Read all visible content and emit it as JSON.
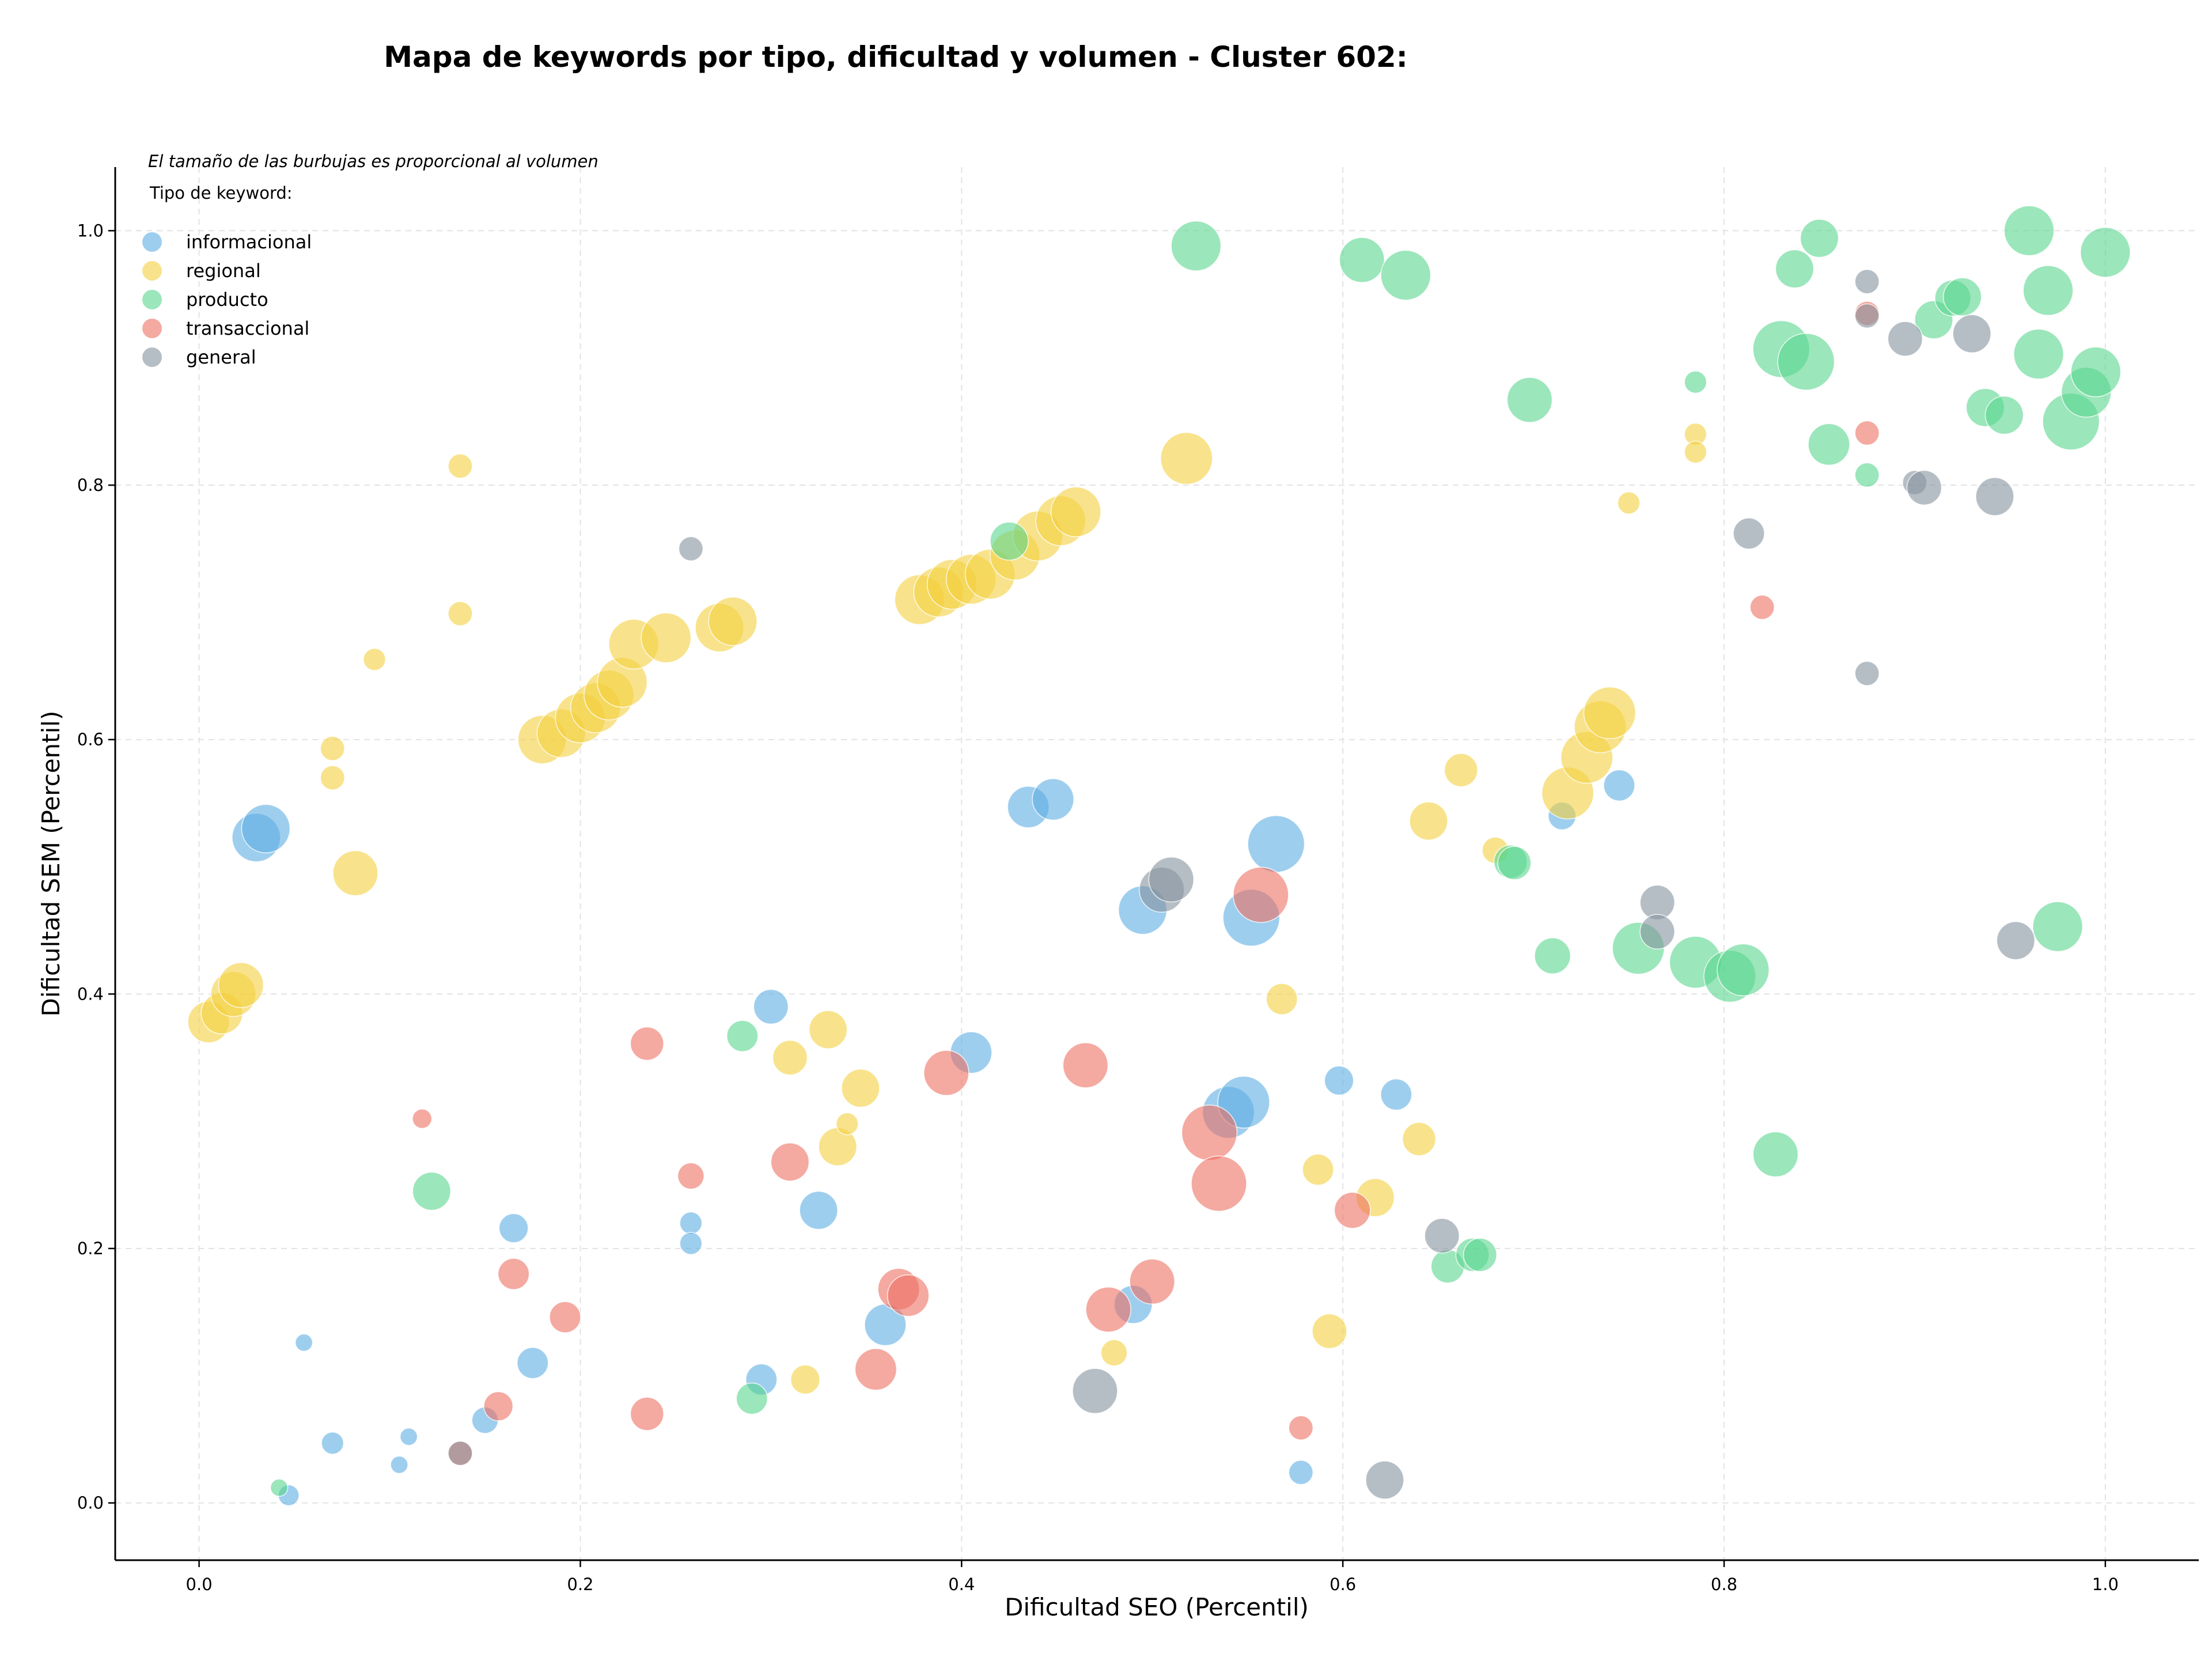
{
  "chart_data": {
    "type": "scatter",
    "title": "Mapa de keywords por tipo, dificultad y volumen - Cluster 602:",
    "subtitle_note": "El tamaño de las burbujas es proporcional al volumen",
    "xlabel": "Dificultad SEO (Percentil)",
    "ylabel": "Dificultad SEM (Percentil)",
    "xlim": [
      -0.044,
      1.049
    ],
    "ylim": [
      -0.045,
      1.05
    ],
    "xticks": [
      0.0,
      0.2,
      0.4,
      0.6,
      0.8,
      1.0
    ],
    "yticks": [
      0.0,
      0.2,
      0.4,
      0.6,
      0.8,
      1.0
    ],
    "xtick_labels": [
      "0.0",
      "0.2",
      "0.4",
      "0.6",
      "0.8",
      "1.0"
    ],
    "ytick_labels": [
      "0.0",
      "0.2",
      "0.4",
      "0.6",
      "0.8",
      "1.0"
    ],
    "grid": true,
    "legend": {
      "title": "Tipo de keyword:",
      "position": "top-left"
    },
    "series": [
      {
        "name": "informacional",
        "color": "#5dade2",
        "points": [
          [
            0.03,
            0.523,
            0.7
          ],
          [
            0.035,
            0.53,
            0.7
          ],
          [
            0.047,
            0.006,
            0.3
          ],
          [
            0.055,
            0.126,
            0.25
          ],
          [
            0.07,
            0.047,
            0.32
          ],
          [
            0.105,
            0.03,
            0.25
          ],
          [
            0.11,
            0.052,
            0.25
          ],
          [
            0.15,
            0.065,
            0.38
          ],
          [
            0.165,
            0.216,
            0.42
          ],
          [
            0.175,
            0.11,
            0.45
          ],
          [
            0.258,
            0.22,
            0.32
          ],
          [
            0.258,
            0.204,
            0.32
          ],
          [
            0.295,
            0.097,
            0.45
          ],
          [
            0.3,
            0.39,
            0.5
          ],
          [
            0.325,
            0.23,
            0.55
          ],
          [
            0.36,
            0.14,
            0.6
          ],
          [
            0.405,
            0.354,
            0.6
          ],
          [
            0.435,
            0.547,
            0.6
          ],
          [
            0.448,
            0.553,
            0.6
          ],
          [
            0.49,
            0.156,
            0.55
          ],
          [
            0.495,
            0.466,
            0.7
          ],
          [
            0.54,
            0.307,
            0.75
          ],
          [
            0.548,
            0.315,
            0.75
          ],
          [
            0.552,
            0.46,
            0.82
          ],
          [
            0.565,
            0.518,
            0.82
          ],
          [
            0.578,
            0.024,
            0.35
          ],
          [
            0.598,
            0.332,
            0.42
          ],
          [
            0.628,
            0.321,
            0.45
          ],
          [
            0.715,
            0.54,
            0.4
          ],
          [
            0.745,
            0.564,
            0.45
          ]
        ]
      },
      {
        "name": "regional",
        "color": "#f4d03f",
        "points": [
          [
            0.005,
            0.378,
            0.6
          ],
          [
            0.012,
            0.385,
            0.6
          ],
          [
            0.018,
            0.4,
            0.65
          ],
          [
            0.022,
            0.407,
            0.65
          ],
          [
            0.07,
            0.593,
            0.35
          ],
          [
            0.07,
            0.57,
            0.35
          ],
          [
            0.082,
            0.495,
            0.65
          ],
          [
            0.092,
            0.663,
            0.32
          ],
          [
            0.137,
            0.815,
            0.35
          ],
          [
            0.137,
            0.699,
            0.35
          ],
          [
            0.18,
            0.6,
            0.7
          ],
          [
            0.19,
            0.605,
            0.7
          ],
          [
            0.2,
            0.617,
            0.72
          ],
          [
            0.208,
            0.625,
            0.72
          ],
          [
            0.215,
            0.635,
            0.72
          ],
          [
            0.222,
            0.645,
            0.72
          ],
          [
            0.228,
            0.675,
            0.72
          ],
          [
            0.245,
            0.68,
            0.72
          ],
          [
            0.273,
            0.688,
            0.7
          ],
          [
            0.28,
            0.693,
            0.7
          ],
          [
            0.31,
            0.35,
            0.5
          ],
          [
            0.33,
            0.372,
            0.55
          ],
          [
            0.335,
            0.28,
            0.55
          ],
          [
            0.34,
            0.298,
            0.32
          ],
          [
            0.347,
            0.326,
            0.55
          ],
          [
            0.318,
            0.097,
            0.42
          ],
          [
            0.378,
            0.71,
            0.72
          ],
          [
            0.388,
            0.716,
            0.72
          ],
          [
            0.395,
            0.722,
            0.72
          ],
          [
            0.405,
            0.726,
            0.72
          ],
          [
            0.415,
            0.73,
            0.72
          ],
          [
            0.428,
            0.745,
            0.72
          ],
          [
            0.44,
            0.76,
            0.72
          ],
          [
            0.452,
            0.772,
            0.72
          ],
          [
            0.46,
            0.779,
            0.72
          ],
          [
            0.48,
            0.118,
            0.38
          ],
          [
            0.518,
            0.821,
            0.75
          ],
          [
            0.568,
            0.396,
            0.45
          ],
          [
            0.587,
            0.262,
            0.45
          ],
          [
            0.593,
            0.135,
            0.5
          ],
          [
            0.617,
            0.24,
            0.55
          ],
          [
            0.64,
            0.286,
            0.48
          ],
          [
            0.645,
            0.536,
            0.55
          ],
          [
            0.662,
            0.576,
            0.48
          ],
          [
            0.68,
            0.513,
            0.38
          ],
          [
            0.718,
            0.558,
            0.75
          ],
          [
            0.728,
            0.586,
            0.75
          ],
          [
            0.735,
            0.61,
            0.75
          ],
          [
            0.74,
            0.621,
            0.75
          ],
          [
            0.75,
            0.786,
            0.32
          ],
          [
            0.785,
            0.84,
            0.32
          ],
          [
            0.785,
            0.826,
            0.32
          ]
        ]
      },
      {
        "name": "producto",
        "color": "#58d68d",
        "points": [
          [
            0.042,
            0.012,
            0.25
          ],
          [
            0.122,
            0.245,
            0.55
          ],
          [
            0.285,
            0.367,
            0.45
          ],
          [
            0.29,
            0.082,
            0.45
          ],
          [
            0.425,
            0.756,
            0.55
          ],
          [
            0.523,
            0.988,
            0.72
          ],
          [
            0.61,
            0.977,
            0.65
          ],
          [
            0.633,
            0.965,
            0.72
          ],
          [
            0.655,
            0.186,
            0.48
          ],
          [
            0.668,
            0.195,
            0.48
          ],
          [
            0.672,
            0.195,
            0.48
          ],
          [
            0.688,
            0.504,
            0.48
          ],
          [
            0.69,
            0.503,
            0.48
          ],
          [
            0.698,
            0.867,
            0.65
          ],
          [
            0.71,
            0.43,
            0.52
          ],
          [
            0.755,
            0.436,
            0.75
          ],
          [
            0.785,
            0.425,
            0.75
          ],
          [
            0.785,
            0.881,
            0.32
          ],
          [
            0.803,
            0.414,
            0.75
          ],
          [
            0.81,
            0.419,
            0.75
          ],
          [
            0.827,
            0.274,
            0.65
          ],
          [
            0.83,
            0.907,
            0.82
          ],
          [
            0.837,
            0.97,
            0.55
          ],
          [
            0.843,
            0.897,
            0.82
          ],
          [
            0.85,
            0.994,
            0.55
          ],
          [
            0.855,
            0.832,
            0.6
          ],
          [
            0.875,
            0.808,
            0.35
          ],
          [
            0.91,
            0.93,
            0.55
          ],
          [
            0.92,
            0.947,
            0.52
          ],
          [
            0.925,
            0.948,
            0.55
          ],
          [
            0.937,
            0.861,
            0.55
          ],
          [
            0.947,
            0.855,
            0.55
          ],
          [
            0.96,
            1.0,
            0.72
          ],
          [
            0.965,
            0.903,
            0.72
          ],
          [
            0.97,
            0.953,
            0.72
          ],
          [
            0.975,
            0.453,
            0.72
          ],
          [
            0.982,
            0.85,
            0.82
          ],
          [
            0.99,
            0.873,
            0.72
          ],
          [
            0.995,
            0.889,
            0.72
          ],
          [
            1.0,
            0.983,
            0.72
          ]
        ]
      },
      {
        "name": "transaccional",
        "color": "#ec7063",
        "points": [
          [
            0.117,
            0.302,
            0.28
          ],
          [
            0.137,
            0.039,
            0.35
          ],
          [
            0.157,
            0.076,
            0.42
          ],
          [
            0.165,
            0.18,
            0.45
          ],
          [
            0.192,
            0.146,
            0.45
          ],
          [
            0.235,
            0.361,
            0.48
          ],
          [
            0.235,
            0.07,
            0.48
          ],
          [
            0.258,
            0.257,
            0.38
          ],
          [
            0.31,
            0.268,
            0.55
          ],
          [
            0.355,
            0.105,
            0.6
          ],
          [
            0.367,
            0.168,
            0.6
          ],
          [
            0.372,
            0.163,
            0.6
          ],
          [
            0.392,
            0.338,
            0.65
          ],
          [
            0.465,
            0.344,
            0.65
          ],
          [
            0.477,
            0.152,
            0.65
          ],
          [
            0.5,
            0.174,
            0.65
          ],
          [
            0.53,
            0.291,
            0.8
          ],
          [
            0.535,
            0.251,
            0.8
          ],
          [
            0.557,
            0.478,
            0.8
          ],
          [
            0.578,
            0.059,
            0.35
          ],
          [
            0.605,
            0.23,
            0.52
          ],
          [
            0.82,
            0.704,
            0.35
          ],
          [
            0.875,
            0.841,
            0.35
          ],
          [
            0.875,
            0.935,
            0.35
          ]
        ]
      },
      {
        "name": "general",
        "color": "#85929e",
        "points": [
          [
            0.137,
            0.039,
            0.35
          ],
          [
            0.258,
            0.75,
            0.35
          ],
          [
            0.47,
            0.088,
            0.65
          ],
          [
            0.505,
            0.482,
            0.65
          ],
          [
            0.51,
            0.49,
            0.65
          ],
          [
            0.622,
            0.018,
            0.55
          ],
          [
            0.652,
            0.21,
            0.5
          ],
          [
            0.765,
            0.472,
            0.5
          ],
          [
            0.765,
            0.449,
            0.5
          ],
          [
            0.813,
            0.762,
            0.45
          ],
          [
            0.875,
            0.96,
            0.35
          ],
          [
            0.875,
            0.933,
            0.35
          ],
          [
            0.875,
            0.652,
            0.35
          ],
          [
            0.895,
            0.915,
            0.5
          ],
          [
            0.9,
            0.802,
            0.35
          ],
          [
            0.905,
            0.798,
            0.5
          ],
          [
            0.93,
            0.919,
            0.55
          ],
          [
            0.942,
            0.791,
            0.55
          ],
          [
            0.953,
            0.442,
            0.55
          ]
        ]
      }
    ]
  }
}
